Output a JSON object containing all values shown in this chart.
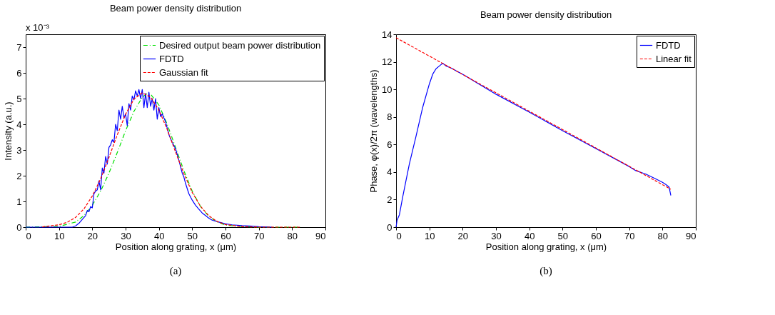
{
  "chart_data": [
    {
      "type": "line",
      "title": "Beam power density distribution",
      "xlabel": "Position along grating, x (μm)",
      "ylabel": "Intensity (a.u.)",
      "annotations": [
        "x 10⁻³",
        "(a)"
      ],
      "xlim": [
        0,
        90
      ],
      "xticks": [
        0,
        10,
        20,
        30,
        40,
        50,
        60,
        70,
        80,
        90
      ],
      "ylim": [
        0,
        7.5
      ],
      "yticks": [
        0,
        1,
        2,
        3,
        4,
        5,
        6,
        7
      ],
      "grid": false,
      "legend": "top right",
      "marker": "none",
      "series": [
        {
          "name": "Desired output beam power distribution",
          "color": "#00e000",
          "line_style": "dashdot",
          "x": [
            0,
            10,
            15,
            17.5,
            20,
            22.5,
            25,
            27.5,
            30,
            32.5,
            35,
            36.5,
            37.5,
            40,
            42.5,
            45,
            47.5,
            50,
            52.5,
            55,
            57.5,
            60,
            65,
            70,
            82.5
          ],
          "values": [
            0,
            0.03,
            0.2,
            0.45,
            0.85,
            1.4,
            2.1,
            2.9,
            3.75,
            4.5,
            5.05,
            5.2,
            5.17,
            4.75,
            4.0,
            3.1,
            2.2,
            1.4,
            0.8,
            0.42,
            0.2,
            0.08,
            0.02,
            0,
            0
          ]
        },
        {
          "name": "FDTD",
          "color": "#0000ff",
          "line_style": "solid",
          "x": [
            0,
            14,
            15,
            16,
            17,
            18,
            18.5,
            19,
            19.5,
            20,
            20.5,
            21,
            21.5,
            22,
            22.5,
            23,
            23.5,
            24,
            24.5,
            25,
            25.5,
            26,
            26.5,
            27,
            27.5,
            28,
            28.5,
            29,
            29.5,
            30,
            30.5,
            31,
            31.5,
            32,
            32.5,
            33,
            33.5,
            34,
            34.5,
            35,
            35.5,
            36,
            36.5,
            37,
            37.5,
            38,
            38.5,
            39,
            39.5,
            40,
            40.5,
            41,
            42,
            43,
            44,
            45,
            46,
            47,
            47.5,
            48,
            49,
            50,
            51,
            52,
            53,
            54,
            55,
            56,
            58,
            60,
            62,
            65,
            68,
            70,
            74
          ],
          "values": [
            0,
            0,
            0.05,
            0.15,
            0.3,
            0.45,
            0.65,
            0.6,
            0.8,
            0.75,
            1.3,
            1.4,
            1.45,
            1.8,
            1.45,
            2.3,
            2.1,
            2.75,
            2.45,
            3.1,
            3.2,
            3.4,
            3.3,
            4.0,
            3.75,
            4.55,
            4.2,
            4.7,
            4.25,
            4.4,
            3.95,
            4.8,
            4.55,
            5.1,
            4.95,
            5.3,
            5.1,
            5.35,
            5.0,
            5.35,
            4.65,
            5.2,
            4.65,
            5.25,
            4.7,
            5.0,
            4.55,
            5.0,
            4.2,
            4.65,
            4.3,
            4.4,
            4.1,
            3.6,
            3.3,
            3.05,
            2.6,
            2.1,
            1.95,
            1.7,
            1.3,
            1.05,
            0.85,
            0.7,
            0.55,
            0.45,
            0.35,
            0.27,
            0.2,
            0.13,
            0.09,
            0.06,
            0.04,
            0.02,
            0
          ]
        },
        {
          "name": "Gaussian fit",
          "color": "#ff0000",
          "line_style": "dashed",
          "x": [
            5,
            10,
            12.5,
            15,
            17.5,
            20,
            22.5,
            25,
            27.5,
            30,
            32.5,
            35,
            37.5,
            40,
            42.5,
            45,
            47.5,
            50,
            52.5,
            55,
            57.5,
            60,
            65,
            70,
            82.5
          ],
          "values": [
            0.01,
            0.09,
            0.19,
            0.38,
            0.71,
            1.21,
            1.88,
            2.71,
            3.59,
            4.39,
            4.98,
            5.22,
            5.06,
            4.55,
            3.8,
            2.92,
            2.08,
            1.35,
            0.81,
            0.44,
            0.22,
            0.1,
            0.02,
            0,
            0
          ]
        }
      ]
    },
    {
      "type": "line",
      "title": "Beam power density distribution",
      "xlabel": "Position along grating, x (μm)",
      "ylabel": "Phase, φ(x)/2π (wavelengths)",
      "annotations": [
        "(b)"
      ],
      "xlim": [
        0,
        90
      ],
      "xticks": [
        0,
        10,
        20,
        30,
        40,
        50,
        60,
        70,
        80,
        90
      ],
      "ylim": [
        0,
        14
      ],
      "yticks": [
        0,
        2,
        4,
        6,
        8,
        10,
        12,
        14
      ],
      "grid": false,
      "legend": "top right",
      "marker": "none",
      "series": [
        {
          "name": "FDTD",
          "color": "#0000ff",
          "line_style": "solid",
          "x": [
            0,
            0.3,
            1,
            2,
            4,
            6,
            8,
            10,
            11,
            12,
            13,
            14,
            15,
            16,
            17,
            18,
            20,
            30,
            40,
            50,
            60,
            70,
            72,
            75,
            78,
            80,
            81,
            82,
            82.5
          ],
          "values": [
            0,
            0.5,
            0.9,
            2.2,
            4.6,
            6.6,
            8.7,
            10.4,
            11.1,
            11.5,
            11.7,
            11.9,
            11.7,
            11.6,
            11.5,
            11.35,
            11.1,
            9.65,
            8.35,
            7.0,
            5.7,
            4.4,
            4.1,
            3.85,
            3.5,
            3.25,
            3.1,
            2.9,
            2.3
          ]
        },
        {
          "name": "Linear fit",
          "color": "#ff0000",
          "line_style": "dashed",
          "x": [
            0,
            82.5
          ],
          "values": [
            13.75,
            2.75
          ]
        }
      ]
    }
  ]
}
